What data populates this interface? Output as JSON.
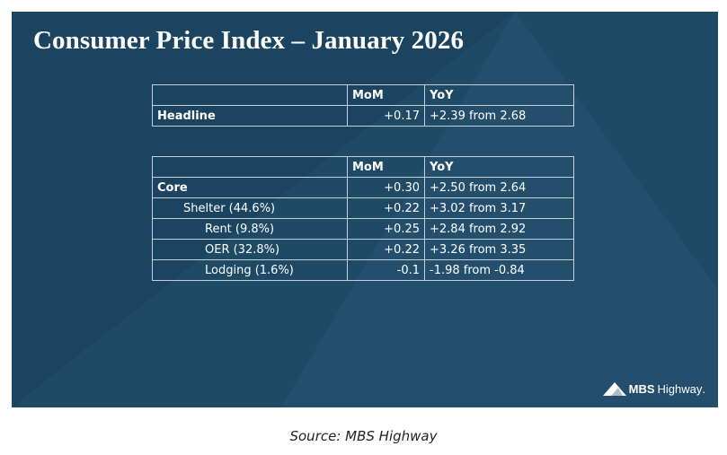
{
  "slide": {
    "title": "Consumer Price Index – January 2026",
    "headline_table": {
      "columns": [
        "",
        "MoM",
        "YoY"
      ],
      "rows": [
        {
          "label": "Headline",
          "mom": "+0.17",
          "yoy": "+2.39 from 2.68"
        }
      ]
    },
    "core_table": {
      "columns": [
        "",
        "MoM",
        "YoY"
      ],
      "rows": [
        {
          "label": "Core",
          "mom": "+0.30",
          "yoy": "+2.50 from 2.64"
        },
        {
          "label": "Shelter (44.6%)",
          "mom": "+0.22",
          "yoy": "+3.02 from 3.17"
        },
        {
          "label": "Rent (9.8%)",
          "mom": "+0.25",
          "yoy": "+2.84 from 2.92"
        },
        {
          "label": "OER (32.8%)",
          "mom": "+0.22",
          "yoy": "+3.26 from 3.35"
        },
        {
          "label": "Lodging (1.6%)",
          "mom": "-0.1",
          "yoy": "-1.98 from -0.84"
        }
      ]
    },
    "logo": {
      "mbs": "MBS",
      "highway": "Highway",
      "trademark": "."
    },
    "colors": {
      "background": "#1b4460",
      "shape": "#244f6c",
      "text": "#ffffff",
      "border": "#c4d1dc"
    }
  },
  "caption": "Source: MBS Highway"
}
